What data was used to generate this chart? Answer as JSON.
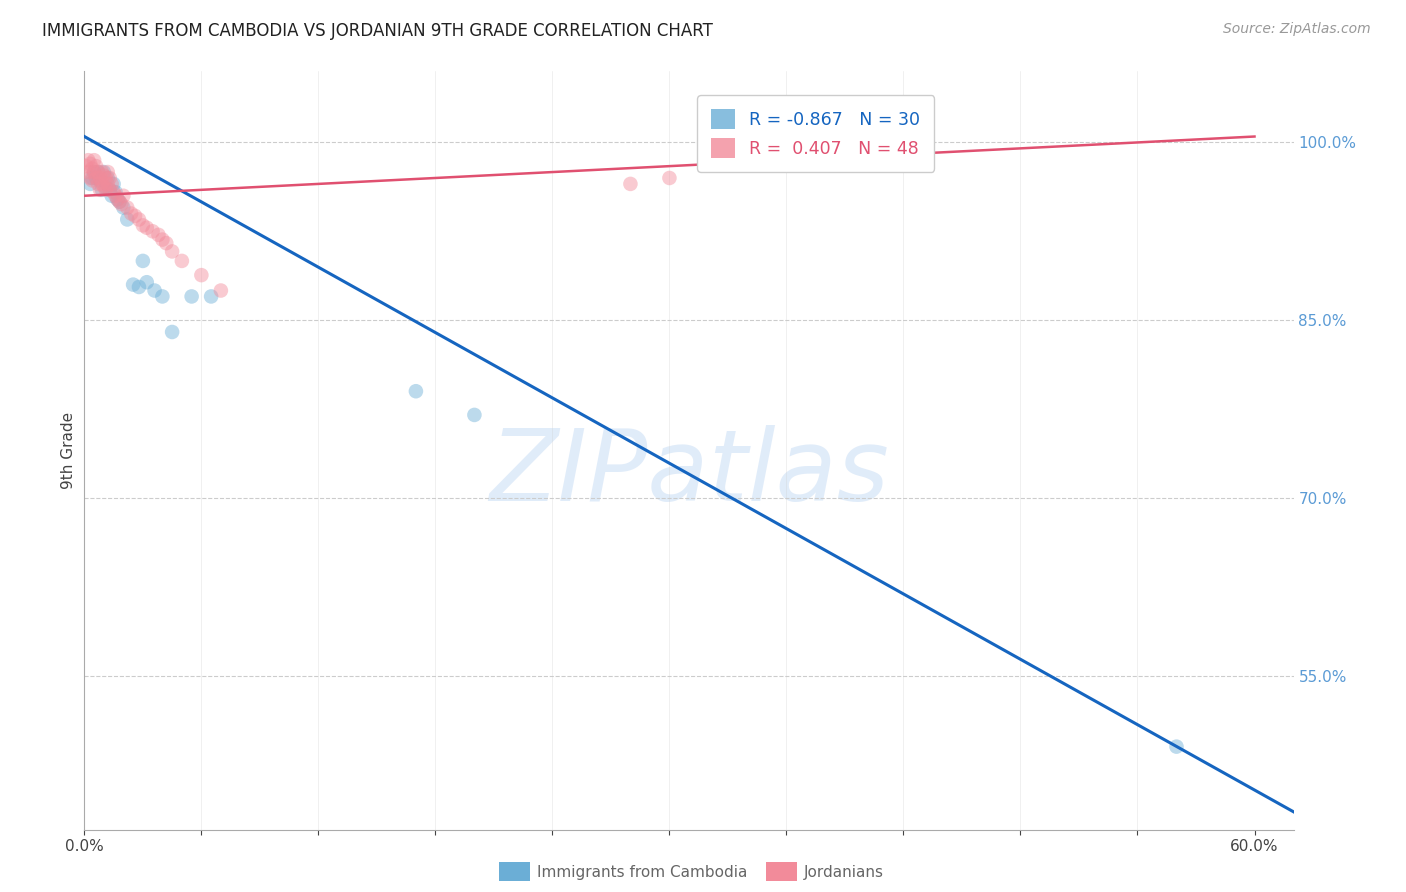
{
  "title": "IMMIGRANTS FROM CAMBODIA VS JORDANIAN 9TH GRADE CORRELATION CHART",
  "source": "Source: ZipAtlas.com",
  "ylabel_left": "9th Grade",
  "yright_ticks": [
    0.55,
    0.7,
    0.85,
    1.0
  ],
  "xlim": [
    0.0,
    0.62
  ],
  "ylim": [
    0.42,
    1.06
  ],
  "legend_entries": [
    {
      "label": "Immigrants from Cambodia",
      "color": "#6baed6",
      "R": "-0.867",
      "N": "30"
    },
    {
      "label": "Jordanians",
      "color": "#f08080",
      "R": "0.407",
      "N": "48"
    }
  ],
  "watermark_text": "ZIPatlas",
  "blue_scatter_x": [
    0.003,
    0.004,
    0.005,
    0.006,
    0.007,
    0.008,
    0.009,
    0.01,
    0.011,
    0.012,
    0.013,
    0.014,
    0.015,
    0.016,
    0.017,
    0.018,
    0.02,
    0.022,
    0.025,
    0.028,
    0.03,
    0.032,
    0.036,
    0.04,
    0.045,
    0.055,
    0.065,
    0.17,
    0.2,
    0.56
  ],
  "blue_scatter_y": [
    0.965,
    0.97,
    0.975,
    0.97,
    0.975,
    0.968,
    0.96,
    0.975,
    0.962,
    0.97,
    0.96,
    0.955,
    0.965,
    0.958,
    0.952,
    0.95,
    0.945,
    0.935,
    0.88,
    0.878,
    0.9,
    0.882,
    0.875,
    0.87,
    0.84,
    0.87,
    0.87,
    0.79,
    0.77,
    0.49
  ],
  "pink_scatter_x": [
    0.001,
    0.002,
    0.002,
    0.003,
    0.003,
    0.004,
    0.004,
    0.005,
    0.005,
    0.006,
    0.006,
    0.007,
    0.007,
    0.008,
    0.008,
    0.009,
    0.009,
    0.01,
    0.01,
    0.011,
    0.011,
    0.012,
    0.012,
    0.013,
    0.013,
    0.014,
    0.015,
    0.016,
    0.017,
    0.018,
    0.019,
    0.02,
    0.022,
    0.024,
    0.026,
    0.028,
    0.03,
    0.032,
    0.035,
    0.038,
    0.04,
    0.042,
    0.045,
    0.05,
    0.06,
    0.07,
    0.28,
    0.3
  ],
  "pink_scatter_y": [
    0.98,
    0.985,
    0.975,
    0.982,
    0.97,
    0.978,
    0.968,
    0.985,
    0.975,
    0.98,
    0.97,
    0.975,
    0.965,
    0.97,
    0.96,
    0.975,
    0.965,
    0.972,
    0.963,
    0.97,
    0.96,
    0.975,
    0.965,
    0.97,
    0.96,
    0.965,
    0.958,
    0.955,
    0.952,
    0.95,
    0.948,
    0.955,
    0.945,
    0.94,
    0.938,
    0.935,
    0.93,
    0.928,
    0.925,
    0.922,
    0.918,
    0.915,
    0.908,
    0.9,
    0.888,
    0.875,
    0.965,
    0.97
  ],
  "blue_line_x": [
    0.0,
    0.62
  ],
  "blue_line_y": [
    1.005,
    0.435
  ],
  "pink_line_x": [
    0.0,
    0.6
  ],
  "pink_line_y": [
    0.955,
    1.005
  ],
  "background_color": "#ffffff",
  "grid_color": "#cccccc",
  "scatter_size": 110,
  "scatter_alpha": 0.45,
  "blue_color": "#6baed6",
  "pink_color": "#f28b9a",
  "blue_line_color": "#1565c0",
  "pink_line_color": "#e05070"
}
